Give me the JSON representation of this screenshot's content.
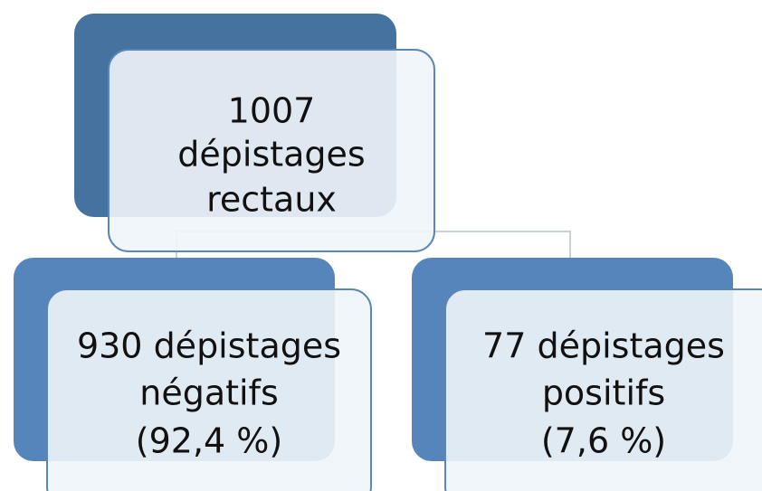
{
  "nodes": [
    {
      "lines": [
        "1007",
        "dépistages",
        "rectaux"
      ]
    },
    {
      "lines": [
        "930 dépistages",
        "négatifs",
        "(92,4 %)"
      ]
    },
    {
      "lines": [
        "77 dépistages",
        "positifs",
        "(7,6 %)"
      ]
    }
  ]
}
